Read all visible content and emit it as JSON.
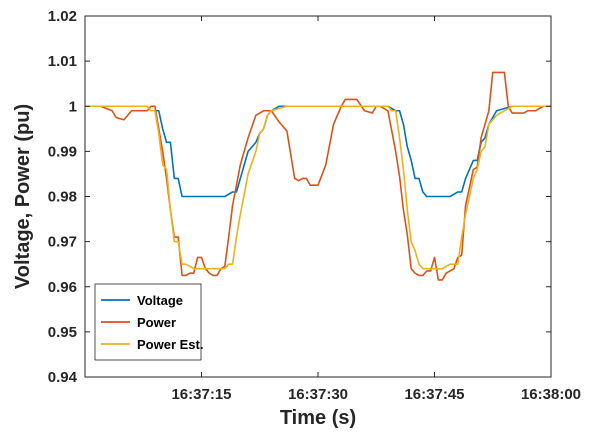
{
  "chart_data": {
    "type": "line",
    "title": "",
    "xlabel": "Time (s)",
    "ylabel": "Voltage, Power (pu)",
    "x_ticks": [
      "16:37:15",
      "16:37:30",
      "16:37:45",
      "16:38:00"
    ],
    "x_tick_values": [
      15,
      30,
      45,
      60
    ],
    "xlim": [
      0,
      60
    ],
    "x_unit": "seconds after 16:37:00",
    "ylim": [
      0.94,
      1.02
    ],
    "y_ticks": [
      "0.94",
      "0.95",
      "0.96",
      "0.97",
      "0.98",
      "0.99",
      "1",
      "1.01",
      "1.02"
    ],
    "y_tick_values": [
      0.94,
      0.95,
      0.96,
      0.97,
      0.98,
      0.99,
      1.0,
      1.01,
      1.02
    ],
    "grid": false,
    "legend_position": "bottom-left",
    "series": [
      {
        "name": "Voltage",
        "color": "#0072BD",
        "x": [
          0,
          3,
          6,
          8,
          8.5,
          9,
          9.5,
          10,
          10.5,
          11,
          11.5,
          12,
          12.5,
          13,
          14,
          16,
          18,
          19,
          19.5,
          20,
          21,
          22,
          22.5,
          23,
          23.5,
          24,
          25,
          26,
          30,
          35,
          38,
          39,
          40,
          40.5,
          41,
          41.5,
          42,
          42.5,
          43,
          43.5,
          44,
          46,
          47,
          48,
          48.5,
          49,
          50,
          50.5,
          51,
          51.5,
          52,
          53,
          55,
          60
        ],
        "y": [
          1.0,
          1.0,
          1.0,
          1.0,
          0.999,
          0.999,
          0.999,
          0.995,
          0.992,
          0.992,
          0.984,
          0.984,
          0.98,
          0.98,
          0.98,
          0.98,
          0.98,
          0.981,
          0.981,
          0.984,
          0.99,
          0.992,
          0.994,
          0.995,
          0.998,
          0.999,
          1.0,
          1.0,
          1.0,
          1.0,
          1.0,
          1.0,
          0.999,
          0.999,
          0.996,
          0.991,
          0.988,
          0.984,
          0.984,
          0.981,
          0.98,
          0.98,
          0.98,
          0.981,
          0.981,
          0.984,
          0.988,
          0.988,
          0.992,
          0.993,
          0.996,
          0.999,
          1.0,
          1.0
        ]
      },
      {
        "name": "Power",
        "color": "#D95319",
        "x": [
          0,
          2,
          3.5,
          4,
          5,
          6,
          7,
          8,
          8.5,
          9,
          10,
          10.5,
          11,
          11.5,
          12,
          12.5,
          13,
          13.5,
          14,
          14.5,
          15,
          15.5,
          16,
          16.5,
          17,
          17.5,
          18,
          18.5,
          19,
          20,
          21,
          22,
          22.5,
          23,
          23.5,
          24,
          25,
          26,
          27,
          27.5,
          28,
          28.5,
          29,
          29.5,
          30,
          31,
          32,
          33,
          33.5,
          34,
          35,
          36,
          37,
          37.5,
          38,
          38.5,
          39,
          40,
          40.5,
          41,
          41.5,
          42,
          42.5,
          43,
          43.5,
          44,
          44.5,
          45,
          45.5,
          46,
          46.5,
          47,
          47.5,
          48,
          48.5,
          49,
          50,
          50.5,
          51,
          52,
          52.5,
          53,
          53.5,
          54,
          54.5,
          55,
          56,
          56.5,
          57,
          58,
          59,
          60
        ],
        "y": [
          1.0,
          1.0,
          0.999,
          0.9975,
          0.997,
          0.999,
          0.999,
          0.999,
          1.0,
          1.0,
          0.99,
          0.984,
          0.977,
          0.971,
          0.971,
          0.9625,
          0.9625,
          0.963,
          0.963,
          0.9665,
          0.9665,
          0.964,
          0.963,
          0.9625,
          0.9625,
          0.964,
          0.9645,
          0.971,
          0.978,
          0.987,
          0.993,
          0.998,
          0.9985,
          0.999,
          0.999,
          0.999,
          0.9965,
          0.9945,
          0.984,
          0.9835,
          0.984,
          0.984,
          0.9825,
          0.9825,
          0.9825,
          0.987,
          0.996,
          1.0,
          1.0015,
          1.0015,
          1.0015,
          0.999,
          0.9985,
          1.0,
          1.0,
          0.9995,
          0.999,
          0.99,
          0.9845,
          0.977,
          0.9715,
          0.964,
          0.963,
          0.9625,
          0.9625,
          0.9635,
          0.9635,
          0.9665,
          0.9615,
          0.9615,
          0.963,
          0.9635,
          0.964,
          0.9665,
          0.967,
          0.978,
          0.986,
          0.9865,
          0.993,
          0.999,
          1.0075,
          1.0075,
          1.0075,
          1.0075,
          1.0,
          0.9985,
          0.9985,
          0.9985,
          0.999,
          0.999,
          1.0,
          1.0
        ]
      },
      {
        "name": "Power Est.",
        "color": "#EDB120",
        "x": [
          0,
          8,
          8.5,
          9,
          9.5,
          10,
          10.5,
          11,
          11.5,
          12,
          12.5,
          13,
          14,
          18,
          18.5,
          19,
          19.5,
          20,
          21,
          22,
          22.5,
          23,
          23.5,
          24,
          26,
          30,
          35,
          39,
          39.5,
          40,
          40.5,
          41,
          41.5,
          42,
          42.5,
          43,
          43.5,
          44,
          46,
          47,
          48,
          48.5,
          49,
          50,
          50.5,
          51,
          51.5,
          52,
          53,
          55,
          60
        ],
        "y": [
          1.0,
          1.0,
          0.999,
          0.999,
          0.994,
          0.987,
          0.986,
          0.977,
          0.97,
          0.97,
          0.965,
          0.965,
          0.964,
          0.964,
          0.965,
          0.965,
          0.971,
          0.976,
          0.985,
          0.99,
          0.994,
          0.995,
          0.998,
          0.999,
          1.0,
          1.0,
          1.0,
          1.0,
          0.999,
          0.999,
          0.993,
          0.986,
          0.977,
          0.97,
          0.968,
          0.965,
          0.964,
          0.964,
          0.964,
          0.965,
          0.965,
          0.971,
          0.976,
          0.984,
          0.986,
          0.99,
          0.991,
          0.996,
          0.998,
          1.0,
          1.0
        ]
      }
    ]
  }
}
